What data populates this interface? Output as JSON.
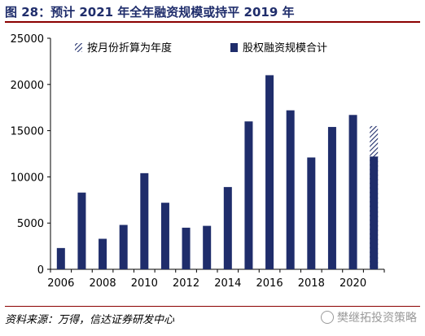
{
  "figure": {
    "title": "图 28：预计 2021 年全年融资规模或持平 2019 年",
    "source": "资料来源：万得，信达证券研发中心",
    "watermark": "樊继拓投资策略"
  },
  "colors": {
    "bar": "#1f2d6b",
    "title": "#1f2d6b",
    "rule": "#8b0000",
    "watermark": "#9a9a9a"
  },
  "chart_data": {
    "type": "bar",
    "title": "",
    "xlabel": "",
    "ylabel": "",
    "ylim": [
      0,
      25000
    ],
    "yticks": [
      0,
      5000,
      10000,
      15000,
      20000,
      25000
    ],
    "xtick_labels": [
      "2006",
      "2008",
      "2010",
      "2012",
      "2014",
      "2016",
      "2018",
      "2020"
    ],
    "categories": [
      "2006",
      "2007",
      "2008",
      "2009",
      "2010",
      "2011",
      "2012",
      "2013",
      "2014",
      "2015",
      "2016",
      "2017",
      "2018",
      "2019",
      "2020",
      "2021"
    ],
    "legend_position": "top",
    "grid": false,
    "series": [
      {
        "name": "按月份折算为年度",
        "style": "hatched",
        "values": [
          null,
          null,
          null,
          null,
          null,
          null,
          null,
          null,
          null,
          null,
          null,
          null,
          null,
          null,
          null,
          15500
        ]
      },
      {
        "name": "股权融资规模合计",
        "style": "solid",
        "values": [
          2300,
          8300,
          3300,
          4800,
          10400,
          7200,
          4500,
          4700,
          8900,
          16000,
          21000,
          17200,
          12100,
          15400,
          16700,
          12200
        ]
      }
    ]
  }
}
